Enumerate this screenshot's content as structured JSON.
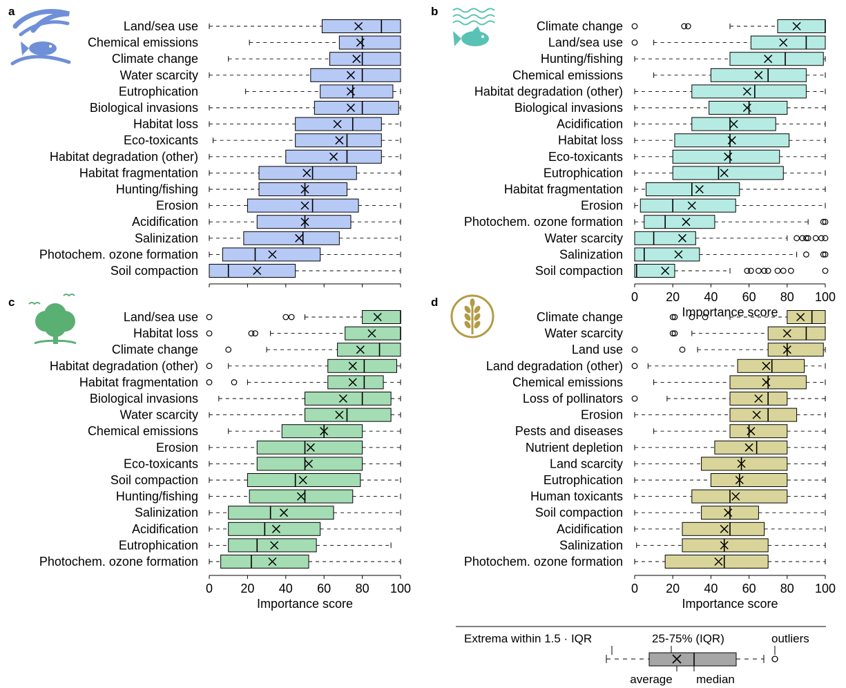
{
  "figure": {
    "xlabel": "Importance score",
    "ticks": [
      0,
      20,
      40,
      60,
      80,
      100
    ],
    "legend": {
      "whisker_label": "Extrema within 1.5 · IQR",
      "box_label": "25-75% (IQR)",
      "outliers_label": "outliers",
      "average_label": "average",
      "median_label": "median"
    }
  },
  "chart_data": [
    {
      "type": "boxplot",
      "panel": "a",
      "icon": "fish-in-water-icon",
      "color": "#b7c9f5",
      "xlim": [
        0,
        100
      ],
      "xlabel": "",
      "categories": [
        "Land/sea use",
        "Chemical emissions",
        "Climate change",
        "Water scarcity",
        "Eutrophication",
        "Biological invasions",
        "Habitat loss",
        "Eco-toxicants",
        "Habitat degradation (other)",
        "Habitat fragmentation",
        "Hunting/fishing",
        "Erosion",
        "Acidification",
        "Salinization",
        "Photochem. ozone formation",
        "Soil compaction"
      ],
      "boxes": [
        {
          "wmin": 0,
          "q1": 59,
          "median": 90,
          "q3": 100,
          "wmax": 100,
          "mean": 78,
          "outliers": []
        },
        {
          "wmin": 21,
          "q1": 68,
          "median": 80,
          "q3": 100,
          "wmax": 100,
          "mean": 79,
          "outliers": []
        },
        {
          "wmin": 10,
          "q1": 63,
          "median": 80,
          "q3": 100,
          "wmax": 100,
          "mean": 77,
          "outliers": []
        },
        {
          "wmin": 0,
          "q1": 53,
          "median": 80,
          "q3": 100,
          "wmax": 100,
          "mean": 74,
          "outliers": []
        },
        {
          "wmin": 19,
          "q1": 58,
          "median": 75,
          "q3": 96,
          "wmax": 100,
          "mean": 74,
          "outliers": []
        },
        {
          "wmin": 0,
          "q1": 55,
          "median": 80,
          "q3": 99,
          "wmax": 100,
          "mean": 74,
          "outliers": []
        },
        {
          "wmin": 0,
          "q1": 45,
          "median": 75,
          "q3": 90,
          "wmax": 100,
          "mean": 67,
          "outliers": []
        },
        {
          "wmin": 2,
          "q1": 45,
          "median": 72,
          "q3": 90,
          "wmax": 100,
          "mean": 68,
          "outliers": []
        },
        {
          "wmin": 0,
          "q1": 40,
          "median": 72,
          "q3": 90,
          "wmax": 100,
          "mean": 65,
          "outliers": []
        },
        {
          "wmin": 0,
          "q1": 26,
          "median": 54,
          "q3": 77,
          "wmax": 100,
          "mean": 51,
          "outliers": []
        },
        {
          "wmin": 0,
          "q1": 26,
          "median": 50,
          "q3": 72,
          "wmax": 100,
          "mean": 50,
          "outliers": []
        },
        {
          "wmin": 0,
          "q1": 20,
          "median": 54,
          "q3": 78,
          "wmax": 100,
          "mean": 50,
          "outliers": []
        },
        {
          "wmin": 0,
          "q1": 25,
          "median": 50,
          "q3": 74,
          "wmax": 100,
          "mean": 50,
          "outliers": []
        },
        {
          "wmin": 0,
          "q1": 18,
          "median": 49,
          "q3": 68,
          "wmax": 100,
          "mean": 47,
          "outliers": []
        },
        {
          "wmin": 0,
          "q1": 7,
          "median": 24,
          "q3": 58,
          "wmax": 100,
          "mean": 33,
          "outliers": []
        },
        {
          "wmin": 0,
          "q1": 0,
          "median": 10,
          "q3": 45,
          "wmax": 100,
          "mean": 25,
          "outliers": []
        }
      ]
    },
    {
      "type": "boxplot",
      "panel": "b",
      "icon": "fish-waves-icon",
      "color": "#b6ebe3",
      "xlim": [
        0,
        100
      ],
      "xlabel": "Importance score",
      "categories": [
        "Climate change",
        "Land/sea use",
        "Hunting/fishing",
        "Chemical emissions",
        "Habitat degradation (other)",
        "Biological invasions",
        "Acidification",
        "Habitat loss",
        "Eco-toxicants",
        "Eutrophication",
        "Habitat fragmentation",
        "Erosion",
        "Photochem. ozone formation",
        "Water scarcity",
        "Salinization",
        "Soil compaction"
      ],
      "boxes": [
        {
          "wmin": 50,
          "q1": 75,
          "median": 100,
          "q3": 100,
          "wmax": 100,
          "mean": 85,
          "outliers": [
            0,
            26,
            28
          ]
        },
        {
          "wmin": 10,
          "q1": 61,
          "median": 90,
          "q3": 100,
          "wmax": 100,
          "mean": 78,
          "outliers": [
            0
          ]
        },
        {
          "wmin": 0,
          "q1": 50,
          "median": 79,
          "q3": 99,
          "wmax": 100,
          "mean": 70,
          "outliers": []
        },
        {
          "wmin": 10,
          "q1": 40,
          "median": 70,
          "q3": 90,
          "wmax": 100,
          "mean": 65,
          "outliers": []
        },
        {
          "wmin": 0,
          "q1": 30,
          "median": 63,
          "q3": 90,
          "wmax": 100,
          "mean": 59,
          "outliers": []
        },
        {
          "wmin": 0,
          "q1": 39,
          "median": 60,
          "q3": 80,
          "wmax": 100,
          "mean": 59,
          "outliers": []
        },
        {
          "wmin": 0,
          "q1": 30,
          "median": 50,
          "q3": 74,
          "wmax": 100,
          "mean": 52,
          "outliers": []
        },
        {
          "wmin": 0,
          "q1": 21,
          "median": 50,
          "q3": 81,
          "wmax": 100,
          "mean": 51,
          "outliers": []
        },
        {
          "wmin": 0,
          "q1": 20,
          "median": 50,
          "q3": 76,
          "wmax": 100,
          "mean": 49,
          "outliers": []
        },
        {
          "wmin": 0,
          "q1": 20,
          "median": 44,
          "q3": 78,
          "wmax": 100,
          "mean": 47,
          "outliers": []
        },
        {
          "wmin": 0,
          "q1": 6,
          "median": 30,
          "q3": 55,
          "wmax": 100,
          "mean": 34,
          "outliers": []
        },
        {
          "wmin": 0,
          "q1": 3,
          "median": 20,
          "q3": 53,
          "wmax": 100,
          "mean": 30,
          "outliers": []
        },
        {
          "wmin": 0,
          "q1": 5,
          "median": 16,
          "q3": 42,
          "wmax": 91,
          "mean": 27,
          "outliers": [
            99,
            100
          ]
        },
        {
          "wmin": 0,
          "q1": 0,
          "median": 10,
          "q3": 32,
          "wmax": 80,
          "mean": 25,
          "outliers": [
            85,
            88,
            90,
            91,
            95,
            98,
            100
          ]
        },
        {
          "wmin": 0,
          "q1": 0,
          "median": 5,
          "q3": 34,
          "wmax": 85,
          "mean": 23,
          "outliers": [
            90,
            99,
            100
          ]
        },
        {
          "wmin": 0,
          "q1": 0,
          "median": 1,
          "q3": 21,
          "wmax": 50,
          "mean": 16,
          "outliers": [
            59,
            61,
            65,
            68,
            70,
            75,
            78,
            82,
            100
          ]
        }
      ]
    },
    {
      "type": "boxplot",
      "panel": "c",
      "icon": "tree-birds-icon",
      "color": "#a4dcb3",
      "xlim": [
        0,
        100
      ],
      "xlabel": "Importance score",
      "categories": [
        "Land/sea use",
        "Habitat loss",
        "Climate change",
        "Habitat degradation (other)",
        "Habitat fragmentation",
        "Biological invasions",
        "Water scarcity",
        "Chemical emissions",
        "Erosion",
        "Eco-toxicants",
        "Soil compaction",
        "Hunting/fishing",
        "Salinization",
        "Acidification",
        "Eutrophication",
        "Photochem. ozone formation"
      ],
      "boxes": [
        {
          "wmin": 50,
          "q1": 80,
          "median": 100,
          "q3": 100,
          "wmax": 100,
          "mean": 88,
          "outliers": [
            0,
            40,
            43
          ]
        },
        {
          "wmin": 32,
          "q1": 71,
          "median": 100,
          "q3": 100,
          "wmax": 100,
          "mean": 85,
          "outliers": [
            0,
            22,
            24
          ]
        },
        {
          "wmin": 30,
          "q1": 67,
          "median": 89,
          "q3": 100,
          "wmax": 100,
          "mean": 79,
          "outliers": [
            10
          ]
        },
        {
          "wmin": 10,
          "q1": 62,
          "median": 81,
          "q3": 98,
          "wmax": 100,
          "mean": 75,
          "outliers": [
            0
          ]
        },
        {
          "wmin": 20,
          "q1": 62,
          "median": 81,
          "q3": 91,
          "wmax": 100,
          "mean": 75,
          "outliers": [
            0,
            13
          ]
        },
        {
          "wmin": 5,
          "q1": 50,
          "median": 80,
          "q3": 95,
          "wmax": 100,
          "mean": 70,
          "outliers": []
        },
        {
          "wmin": 0,
          "q1": 50,
          "median": 72,
          "q3": 95,
          "wmax": 100,
          "mean": 68,
          "outliers": []
        },
        {
          "wmin": 10,
          "q1": 38,
          "median": 60,
          "q3": 80,
          "wmax": 100,
          "mean": 60,
          "outliers": []
        },
        {
          "wmin": 0,
          "q1": 25,
          "median": 50,
          "q3": 80,
          "wmax": 100,
          "mean": 53,
          "outliers": []
        },
        {
          "wmin": 0,
          "q1": 25,
          "median": 50,
          "q3": 80,
          "wmax": 100,
          "mean": 52,
          "outliers": []
        },
        {
          "wmin": 0,
          "q1": 20,
          "median": 45,
          "q3": 79,
          "wmax": 100,
          "mean": 49,
          "outliers": []
        },
        {
          "wmin": 0,
          "q1": 21,
          "median": 50,
          "q3": 75,
          "wmax": 100,
          "mean": 48,
          "outliers": []
        },
        {
          "wmin": 0,
          "q1": 10,
          "median": 32,
          "q3": 65,
          "wmax": 100,
          "mean": 39,
          "outliers": []
        },
        {
          "wmin": 0,
          "q1": 10,
          "median": 29,
          "q3": 58,
          "wmax": 100,
          "mean": 35,
          "outliers": []
        },
        {
          "wmin": 0,
          "q1": 10,
          "median": 25,
          "q3": 56,
          "wmax": 95,
          "mean": 34,
          "outliers": []
        },
        {
          "wmin": 0,
          "q1": 6,
          "median": 22,
          "q3": 52,
          "wmax": 100,
          "mean": 33,
          "outliers": []
        }
      ]
    },
    {
      "type": "boxplot",
      "panel": "d",
      "icon": "wheat-icon",
      "color": "#d9d59a",
      "xlim": [
        0,
        100
      ],
      "xlabel": "Importance score",
      "categories": [
        "Climate change",
        "Water scarcity",
        "Land use",
        "Land degradation (other)",
        "Chemical emissions",
        "Loss of pollinators",
        "Erosion",
        "Pests and diseases",
        "Nutrient depletion",
        "Land scarcity",
        "Eutrophication",
        "Human toxicants",
        "Soil compaction",
        "Acidification",
        "Salinization",
        "Photochem. ozone formation"
      ],
      "boxes": [
        {
          "wmin": 50,
          "q1": 80,
          "median": 93,
          "q3": 100,
          "wmax": 100,
          "mean": 87,
          "outliers": [
            20,
            21,
            30,
            37
          ]
        },
        {
          "wmin": 30,
          "q1": 70,
          "median": 90,
          "q3": 100,
          "wmax": 100,
          "mean": 80,
          "outliers": [
            20,
            21
          ]
        },
        {
          "wmin": 33,
          "q1": 70,
          "median": 80,
          "q3": 99,
          "wmax": 100,
          "mean": 80,
          "outliers": [
            0,
            25
          ]
        },
        {
          "wmin": 7,
          "q1": 54,
          "median": 72,
          "q3": 89,
          "wmax": 100,
          "mean": 69,
          "outliers": [
            0
          ]
        },
        {
          "wmin": 10,
          "q1": 50,
          "median": 70,
          "q3": 90,
          "wmax": 100,
          "mean": 69,
          "outliers": []
        },
        {
          "wmin": 17,
          "q1": 50,
          "median": 70,
          "q3": 80,
          "wmax": 100,
          "mean": 65,
          "outliers": [
            0
          ]
        },
        {
          "wmin": 0,
          "q1": 50,
          "median": 70,
          "q3": 85,
          "wmax": 100,
          "mean": 64,
          "outliers": []
        },
        {
          "wmin": 10,
          "q1": 50,
          "median": 60,
          "q3": 80,
          "wmax": 100,
          "mean": 61,
          "outliers": []
        },
        {
          "wmin": 0,
          "q1": 42,
          "median": 64,
          "q3": 80,
          "wmax": 100,
          "mean": 60,
          "outliers": []
        },
        {
          "wmin": 0,
          "q1": 35,
          "median": 56,
          "q3": 80,
          "wmax": 100,
          "mean": 56,
          "outliers": []
        },
        {
          "wmin": 0,
          "q1": 40,
          "median": 55,
          "q3": 80,
          "wmax": 100,
          "mean": 55,
          "outliers": []
        },
        {
          "wmin": 0,
          "q1": 30,
          "median": 50,
          "q3": 80,
          "wmax": 100,
          "mean": 53,
          "outliers": []
        },
        {
          "wmin": 0,
          "q1": 35,
          "median": 50,
          "q3": 65,
          "wmax": 100,
          "mean": 49,
          "outliers": []
        },
        {
          "wmin": 0,
          "q1": 25,
          "median": 50,
          "q3": 68,
          "wmax": 100,
          "mean": 47,
          "outliers": []
        },
        {
          "wmin": 1,
          "q1": 25,
          "median": 47,
          "q3": 70,
          "wmax": 100,
          "mean": 47,
          "outliers": []
        },
        {
          "wmin": 0,
          "q1": 16,
          "median": 47,
          "q3": 70,
          "wmax": 100,
          "mean": 44,
          "outliers": []
        }
      ]
    }
  ]
}
